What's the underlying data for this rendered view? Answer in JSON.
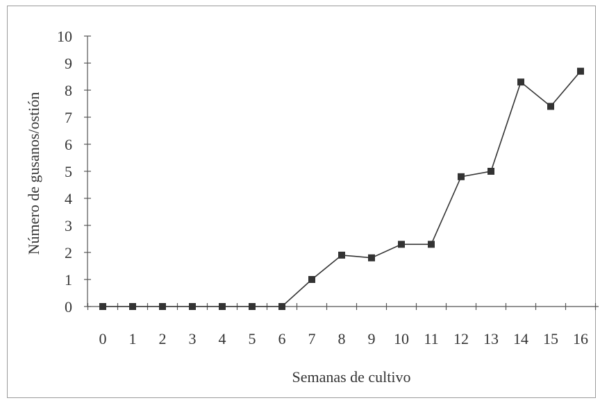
{
  "chart_data": {
    "type": "line",
    "xlabel": "Semanas de cultivo",
    "ylabel": "Número de gusanos/ostión",
    "x": [
      0,
      1,
      2,
      3,
      4,
      5,
      6,
      7,
      8,
      9,
      10,
      11,
      12,
      13,
      14,
      15,
      16
    ],
    "series": [
      {
        "values": [
          0,
          0,
          0,
          0,
          0,
          0,
          0,
          1.0,
          1.9,
          1.8,
          2.3,
          2.3,
          4.8,
          5.0,
          8.3,
          7.4,
          8.7
        ]
      }
    ],
    "xticks": [
      "0",
      "1",
      "2",
      "3",
      "4",
      "5",
      "6",
      "7",
      "8",
      "9",
      "10",
      "11",
      "12",
      "13",
      "14",
      "15",
      "16"
    ],
    "yticks": [
      "0",
      "1",
      "2",
      "3",
      "4",
      "5",
      "6",
      "7",
      "8",
      "9",
      "10"
    ],
    "xlim": [
      0,
      16
    ],
    "ylim": [
      0,
      10
    ],
    "grid": false,
    "marker": "square",
    "line_color": "#333333",
    "marker_color": "#333333"
  }
}
